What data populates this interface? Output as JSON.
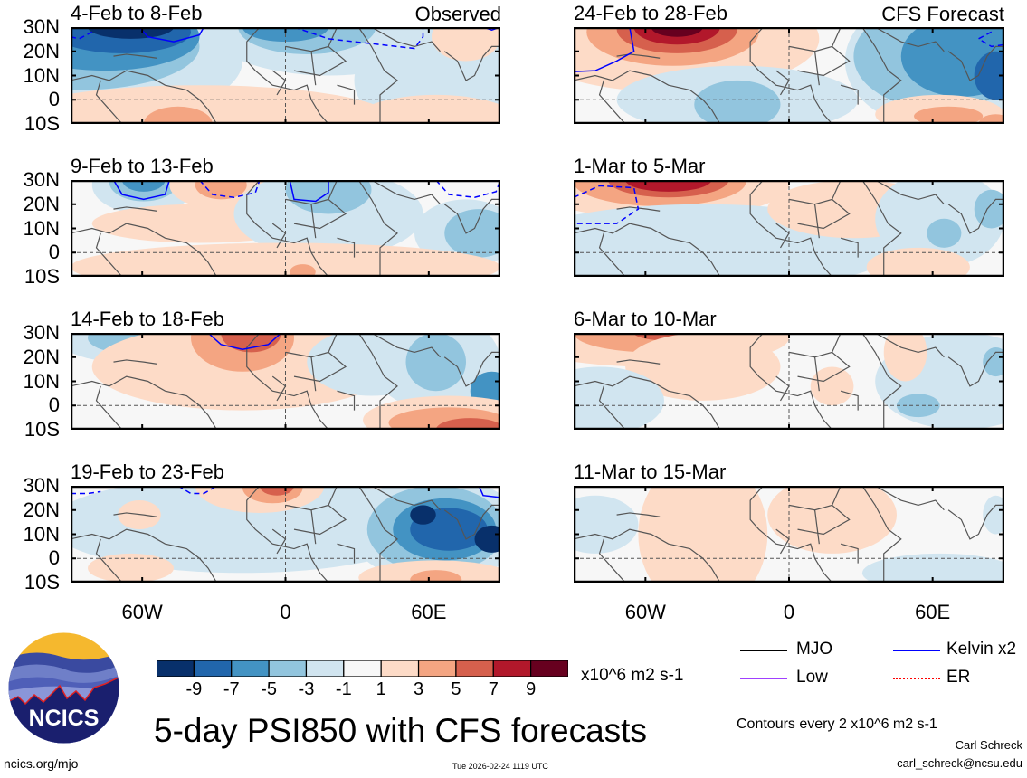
{
  "chart_data": {
    "type": "heatmap",
    "title": "5-day PSI850 with CFS forecasts",
    "variable": "850-hPa streamfunction anomaly",
    "units": "x10^6 m2 s-1",
    "lat_range": [
      "10S",
      "30N"
    ],
    "lon_range": [
      "~90W",
      "~90E"
    ],
    "y_tick_labels": [
      "30N",
      "20N",
      "10N",
      "0",
      "10S"
    ],
    "x_tick_labels": [
      "60W",
      "0",
      "60E"
    ],
    "colorbar": {
      "levels": [
        -9,
        -7,
        -5,
        -3,
        -1,
        1,
        3,
        5,
        7,
        9
      ],
      "tick_labels": [
        "-9",
        "-7",
        "-5",
        "-3",
        "-1",
        "1",
        "3",
        "5",
        "7",
        "9"
      ],
      "colors": [
        "#08306b",
        "#2166ac",
        "#4393c3",
        "#92c5de",
        "#d1e5f0",
        "#f7f7f7",
        "#fddbc7",
        "#f4a582",
        "#d6604d",
        "#b2182b",
        "#67001f"
      ]
    },
    "legend": [
      {
        "label": "MJO",
        "color": "#000000"
      },
      {
        "label": "Low",
        "color": "#a040ff"
      },
      {
        "label": "Kelvin x2",
        "color": "#0000ff"
      },
      {
        "label": "ER",
        "color": "#ff0000"
      }
    ],
    "contour_interval_note": "Contours every 2 x10^6 m2 s-1",
    "panels": [
      {
        "column": "Observed",
        "title": "4-Feb to 8-Feb",
        "features": [
          {
            "type": "anomaly",
            "sign": "negative",
            "max_level": -9,
            "region": "W Atlantic / Caribbean 20-30N"
          },
          {
            "type": "anomaly",
            "sign": "negative",
            "max_level": -7,
            "region": "N Africa 25-30N"
          },
          {
            "type": "anomaly",
            "sign": "negative",
            "max_level": -1,
            "region": "Arabian Sea / E Africa 0-20N"
          },
          {
            "type": "anomaly",
            "sign": "positive",
            "max_level": 3,
            "region": "S America / S Atlantic 0-10S"
          },
          {
            "type": "anomaly",
            "sign": "positive",
            "max_level": 1,
            "region": "India N 20-30N"
          },
          {
            "type": "contour",
            "wave": "Kelvin x2",
            "style": "solid",
            "region": "W Atlantic 25-30N"
          },
          {
            "type": "contour",
            "wave": "Kelvin x2",
            "style": "dashed",
            "region": "N Africa/Arabia 20-30N"
          }
        ]
      },
      {
        "column": "Observed",
        "title": "9-Feb to 13-Feb",
        "features": [
          {
            "type": "anomaly",
            "sign": "negative",
            "max_level": -5,
            "region": "W Atlantic 25-30N"
          },
          {
            "type": "anomaly",
            "sign": "negative",
            "max_level": -3,
            "region": "N Africa 15-30N"
          },
          {
            "type": "anomaly",
            "sign": "negative",
            "max_level": -3,
            "region": "Indian Ocean / Bay of Bengal 0-20N"
          },
          {
            "type": "anomaly",
            "sign": "positive",
            "max_level": 3,
            "region": "Central Atlantic 25-30N"
          },
          {
            "type": "anomaly",
            "sign": "positive",
            "max_level": 1,
            "region": "Tropical Atlantic 0-15N"
          },
          {
            "type": "contour",
            "wave": "Kelvin x2",
            "style": "solid",
            "region": "W Atlantic 25-30N"
          },
          {
            "type": "contour",
            "wave": "Kelvin x2",
            "style": "solid",
            "region": "N Africa 25-30N"
          },
          {
            "type": "contour",
            "wave": "Kelvin x2",
            "style": "dashed",
            "region": "Central Atlantic 25-30N"
          },
          {
            "type": "contour",
            "wave": "Kelvin x2",
            "style": "dashed",
            "region": "India 25-30N"
          }
        ]
      },
      {
        "column": "Observed",
        "title": "14-Feb to 18-Feb",
        "features": [
          {
            "type": "anomaly",
            "sign": "positive",
            "max_level": 5,
            "region": "NW Africa 20-30N"
          },
          {
            "type": "anomaly",
            "sign": "positive",
            "max_level": 5,
            "region": "S Indian Ocean 0-10S"
          },
          {
            "type": "anomaly",
            "sign": "positive",
            "max_level": 1,
            "region": "Tropical Atlantic 0-20N"
          },
          {
            "type": "anomaly",
            "sign": "negative",
            "max_level": -3,
            "region": "Arabian Sea 10-25N"
          },
          {
            "type": "anomaly",
            "sign": "negative",
            "max_level": -5,
            "region": "Bay of Bengal 0-10N"
          },
          {
            "type": "anomaly",
            "sign": "negative",
            "max_level": -3,
            "region": "W Atlantic 25-30N"
          },
          {
            "type": "contour",
            "wave": "Kelvin x2",
            "style": "solid",
            "region": "NW Africa 25-30N"
          }
        ]
      },
      {
        "column": "Observed",
        "title": "19-Feb to 23-Feb",
        "features": [
          {
            "type": "anomaly",
            "sign": "negative",
            "max_level": -9,
            "region": "Arabian Sea / Bay of Bengal 5-20N"
          },
          {
            "type": "anomaly",
            "sign": "negative",
            "max_level": -3,
            "region": "E Africa 0-20N"
          },
          {
            "type": "anomaly",
            "sign": "negative",
            "max_level": -1,
            "region": "Atlantic 5-25N"
          },
          {
            "type": "anomaly",
            "sign": "positive",
            "max_level": 5,
            "region": "NW Africa 25-30N"
          },
          {
            "type": "anomaly",
            "sign": "positive",
            "max_level": 3,
            "region": "S Indian Ocean 5-10S"
          },
          {
            "type": "contour",
            "wave": "Kelvin x2",
            "style": "dashed",
            "region": "W Atlantic 25-30N"
          },
          {
            "type": "contour",
            "wave": "Kelvin x2",
            "style": "solid",
            "region": "Bay of Bengal 25-30N"
          }
        ]
      },
      {
        "column": "CFS Forecast",
        "title": "24-Feb to 28-Feb",
        "features": [
          {
            "type": "anomaly",
            "sign": "positive",
            "max_level": 9,
            "region": "W-Central Atlantic 20-30N"
          },
          {
            "type": "anomaly",
            "sign": "positive",
            "max_level": 3,
            "region": "S Indian Ocean 0-10S"
          },
          {
            "type": "anomaly",
            "sign": "negative",
            "max_level": -7,
            "region": "Arabian Sea / India 0-30N"
          },
          {
            "type": "anomaly",
            "sign": "negative",
            "max_level": -3,
            "region": "Tropical Atlantic 0-10N"
          },
          {
            "type": "contour",
            "wave": "Kelvin x2",
            "style": "solid",
            "region": "Caribbean 10-30N"
          },
          {
            "type": "contour",
            "wave": "Kelvin x2",
            "style": "dashed",
            "region": "Bay of Bengal 25-30N"
          }
        ]
      },
      {
        "column": "CFS Forecast",
        "title": "1-Mar to 5-Mar",
        "features": [
          {
            "type": "anomaly",
            "sign": "positive",
            "max_level": 9,
            "region": "W Atlantic 25-30N"
          },
          {
            "type": "anomaly",
            "sign": "positive",
            "max_level": 1,
            "region": "N Africa 15-30N"
          },
          {
            "type": "anomaly",
            "sign": "negative",
            "max_level": -3,
            "region": "Indian Ocean 0-20N"
          },
          {
            "type": "anomaly",
            "sign": "negative",
            "max_level": -1,
            "region": "Tropical Atlantic 0-15N"
          },
          {
            "type": "contour",
            "wave": "Kelvin x2",
            "style": "dashed",
            "region": "Caribbean 10-30N"
          }
        ]
      },
      {
        "column": "CFS Forecast",
        "title": "6-Mar to 10-Mar",
        "features": [
          {
            "type": "anomaly",
            "sign": "positive",
            "max_level": 5,
            "region": "W Atlantic 25-30N"
          },
          {
            "type": "anomaly",
            "sign": "positive",
            "max_level": 1,
            "region": "Central Atlantic 10-25N"
          },
          {
            "type": "anomaly",
            "sign": "negative",
            "max_level": -3,
            "region": "Indian Ocean 0-5S"
          },
          {
            "type": "anomaly",
            "sign": "negative",
            "max_level": -1,
            "region": "E Pacific / S America 0-15N"
          }
        ]
      },
      {
        "column": "CFS Forecast",
        "title": "11-Mar to 15-Mar",
        "features": [
          {
            "type": "anomaly",
            "sign": "positive",
            "max_level": 1,
            "region": "Central Atlantic 10S-30N"
          },
          {
            "type": "anomaly",
            "sign": "positive",
            "max_level": 1,
            "region": "N Africa 15-30N"
          },
          {
            "type": "anomaly",
            "sign": "negative",
            "max_level": -1,
            "region": "Caribbean 10-20N"
          },
          {
            "type": "anomaly",
            "sign": "negative",
            "max_level": -1,
            "region": "Indian Ocean 0-10S"
          }
        ]
      }
    ]
  },
  "header": {
    "observed_label": "Observed",
    "forecast_label": "CFS Forecast"
  },
  "panels": [
    {
      "title": "4-Feb to 8-Feb"
    },
    {
      "title": "9-Feb to 13-Feb"
    },
    {
      "title": "14-Feb to 18-Feb"
    },
    {
      "title": "19-Feb to 23-Feb"
    },
    {
      "title": "24-Feb to 28-Feb"
    },
    {
      "title": "1-Mar to 5-Mar"
    },
    {
      "title": "6-Mar to 10-Mar"
    },
    {
      "title": "11-Mar to 15-Mar"
    }
  ],
  "axes": {
    "lat": [
      "30N",
      "20N",
      "10N",
      "0",
      "10S"
    ],
    "lon": [
      "60W",
      "0",
      "60E"
    ]
  },
  "colorbar": {
    "ticks": [
      "-9",
      "-7",
      "-5",
      "-3",
      "-1",
      "1",
      "3",
      "5",
      "7",
      "9"
    ],
    "units": "x10^6 m2 s-1"
  },
  "legend": {
    "mjo": "MJO",
    "low": "Low",
    "kelvin": "Kelvin x2",
    "er": "ER"
  },
  "footer": {
    "title": "5-day PSI850 with CFS forecasts",
    "contours_note": "Contours every 2 x10^6 m2 s-1",
    "author": "Carl Schreck",
    "email": "carl_schreck@ncsu.edu",
    "url": "ncics.org/mjo",
    "timestamp": "Tue 2026-02-24 1119 UTC",
    "logo_text": "NCICS"
  }
}
